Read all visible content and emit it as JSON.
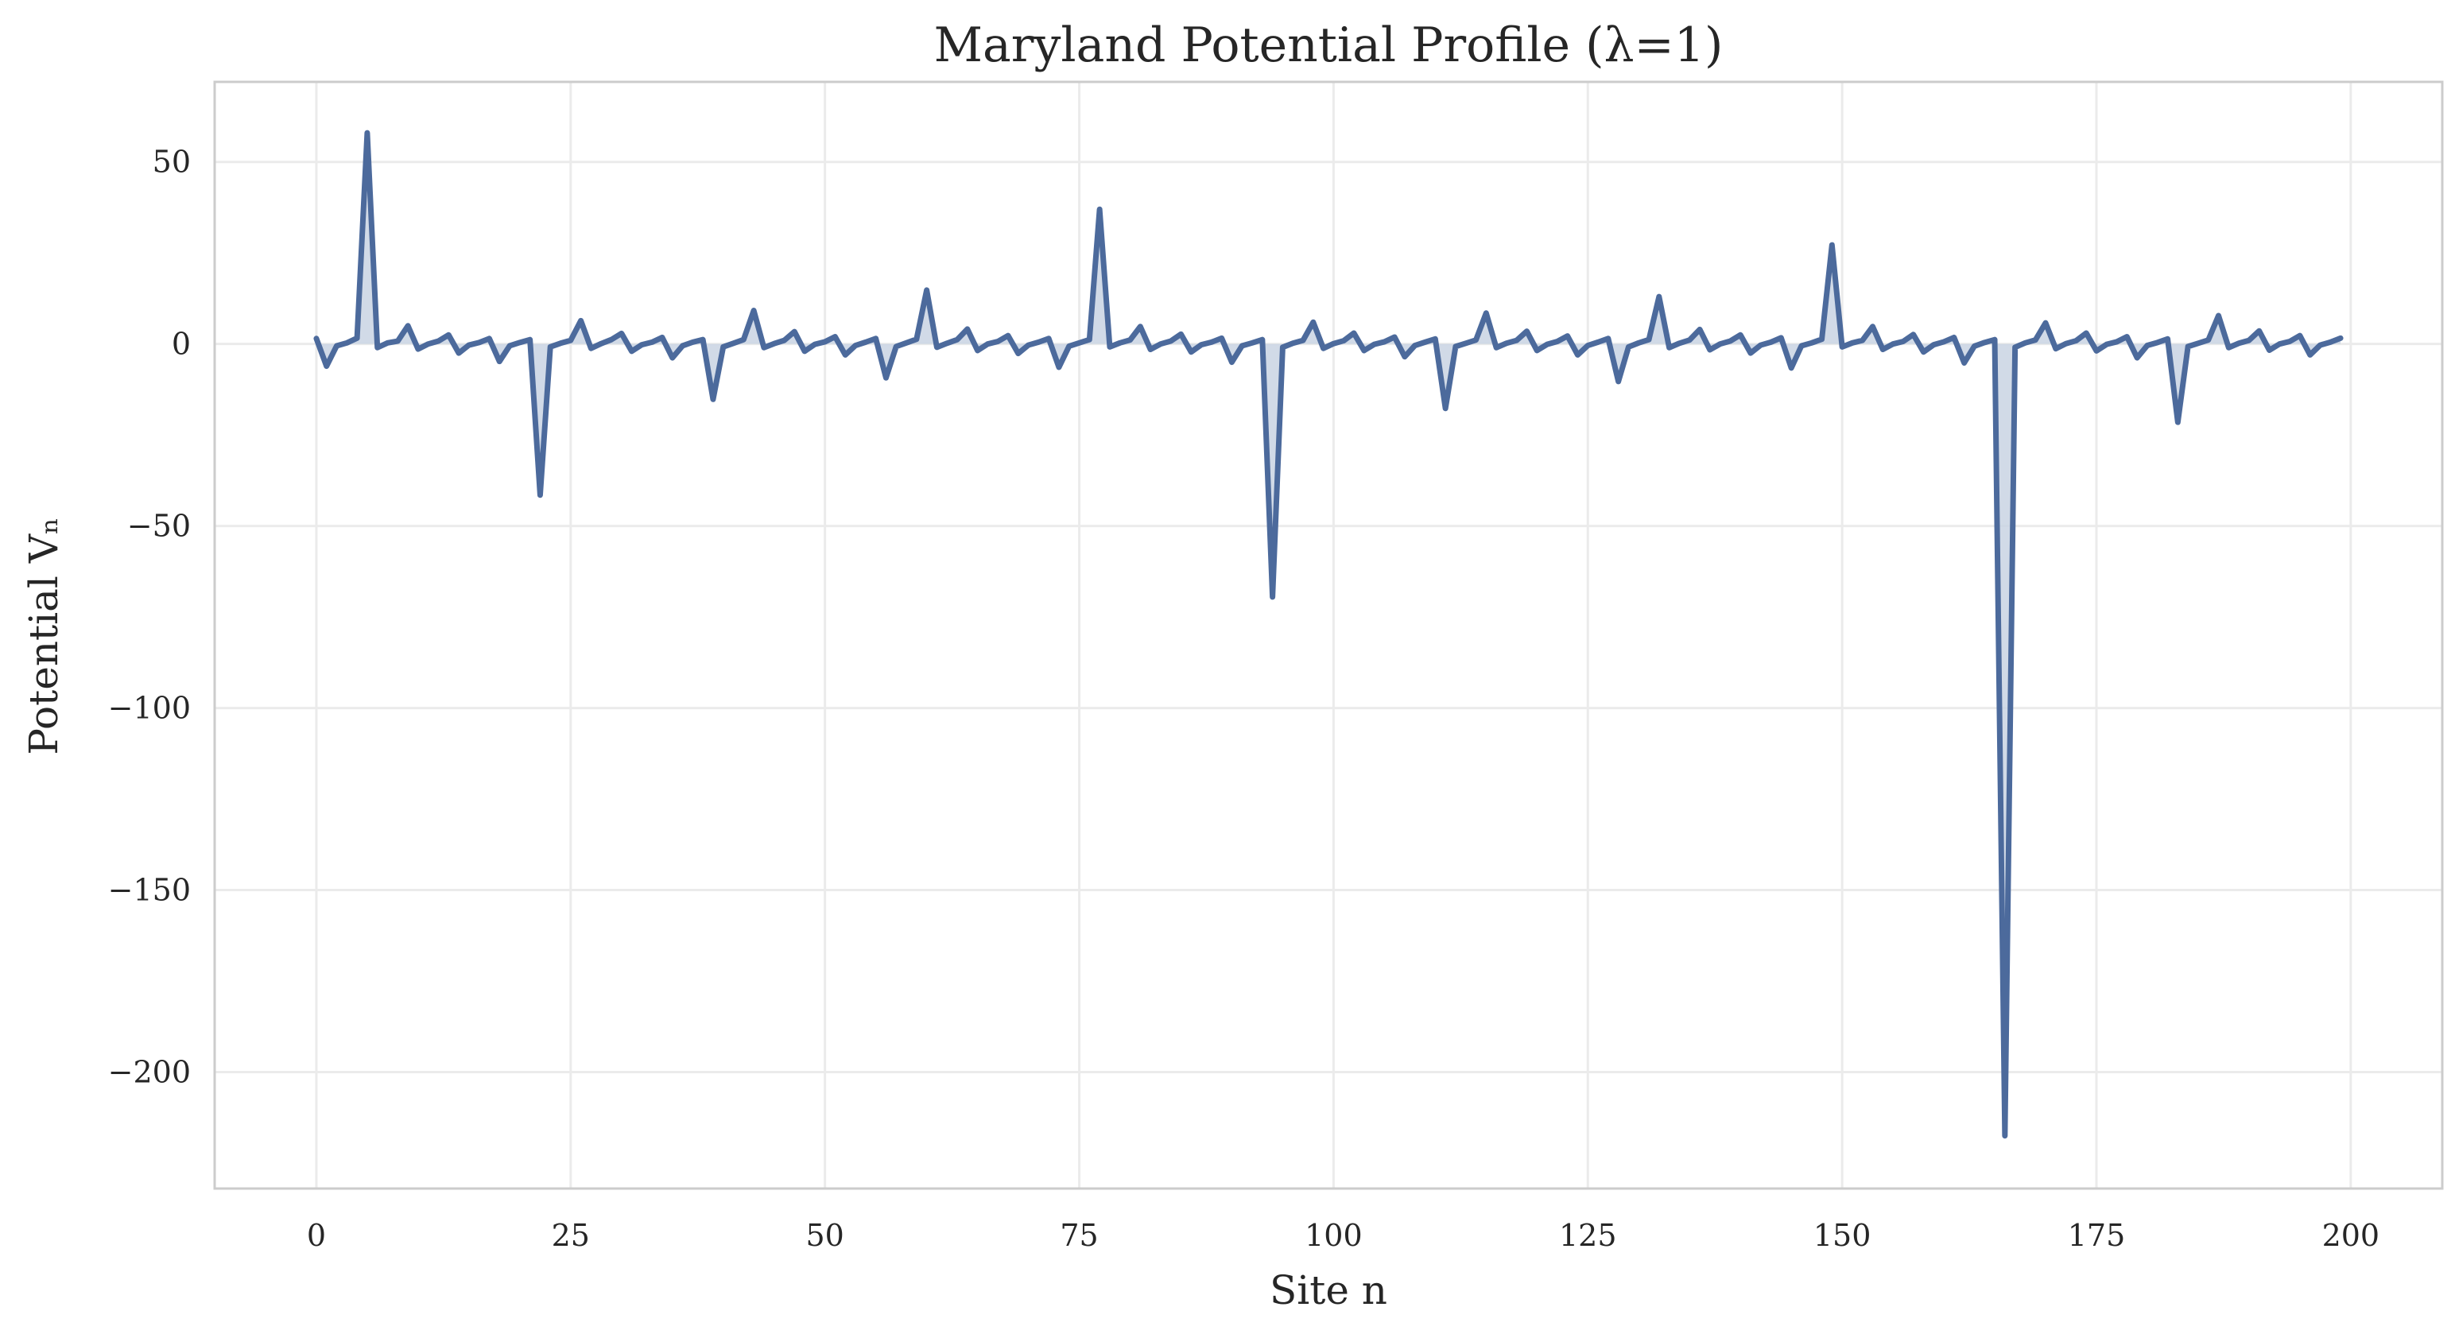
{
  "chart_data": {
    "type": "line",
    "title": "Maryland Potential Profile (λ=1)",
    "xlabel": "Site n",
    "ylabel": "Potential Vₙ",
    "xlim": [
      -10,
      209
    ],
    "ylim": [
      -232,
      72
    ],
    "x_ticks": [
      0,
      25,
      50,
      75,
      100,
      125,
      150,
      175,
      200
    ],
    "x_tick_labels": [
      "0",
      "25",
      "50",
      "75",
      "100",
      "125",
      "150",
      "175",
      "200"
    ],
    "y_ticks": [
      50,
      0,
      -50,
      -100,
      -150,
      -200
    ],
    "y_tick_labels": [
      "50",
      "0",
      "−50",
      "−100",
      "−150",
      "−200"
    ],
    "grid": true,
    "fill_to_zero": true,
    "line_color": "#4c6a9c",
    "fill_color": "#c9d3e3",
    "series": [
      {
        "name": "",
        "x_start": 0,
        "x_step": 1,
        "values": [
          1.5,
          -6.1,
          -0.5,
          0.3,
          1.6,
          58,
          -1.0,
          0.3,
          0.8,
          5.0,
          -1.4,
          0.0,
          0.8,
          2.5,
          -2.5,
          -0.3,
          0.4,
          1.5,
          -4.8,
          -0.5,
          0.4,
          1.2,
          -41.5,
          -0.8,
          0.2,
          1.0,
          6.4,
          -1.2,
          0.1,
          1.2,
          2.9,
          -2.0,
          -0.2,
          0.5,
          1.8,
          -3.8,
          -0.5,
          0.5,
          1.2,
          -15.2,
          -0.8,
          0.2,
          1.2,
          9.2,
          -1.0,
          0.1,
          1.0,
          3.4,
          -2.0,
          -0.1,
          0.6,
          2.0,
          -3.0,
          -0.4,
          0.5,
          1.5,
          -9.3,
          -0.7,
          0.3,
          1.3,
          14.8,
          -0.9,
          0.2,
          1.2,
          4.1,
          -1.8,
          0.0,
          0.7,
          2.3,
          -2.6,
          -0.3,
          0.5,
          1.5,
          -6.4,
          -0.6,
          0.3,
          1.2,
          37.0,
          -0.8,
          0.3,
          1.1,
          4.8,
          -1.5,
          0.0,
          0.8,
          2.7,
          -2.2,
          -0.2,
          0.5,
          1.6,
          -5.0,
          -0.5,
          0.3,
          1.2,
          -69.5,
          -0.9,
          0.2,
          1.0,
          6.0,
          -1.2,
          0.1,
          0.9,
          3.0,
          -1.8,
          -0.1,
          0.6,
          1.9,
          -3.5,
          -0.4,
          0.5,
          1.4,
          -17.7,
          -0.7,
          0.2,
          1.1,
          8.5,
          -1.0,
          0.2,
          1.0,
          3.5,
          -1.8,
          -0.1,
          0.7,
          2.2,
          -3.0,
          -0.4,
          0.5,
          1.5,
          -10.3,
          -0.8,
          0.3,
          1.2,
          13.0,
          -1.0,
          0.2,
          1.1,
          4.0,
          -1.6,
          0.0,
          0.8,
          2.5,
          -2.5,
          -0.3,
          0.5,
          1.7,
          -6.6,
          -0.5,
          0.3,
          1.3,
          27.2,
          -0.8,
          0.3,
          1.0,
          4.8,
          -1.5,
          0.0,
          0.7,
          2.6,
          -2.2,
          -0.2,
          0.6,
          1.8,
          -5.2,
          -0.6,
          0.4,
          1.2,
          -217.5,
          -0.9,
          0.3,
          1.1,
          5.8,
          -1.3,
          0.1,
          0.9,
          3.0,
          -1.9,
          -0.1,
          0.6,
          2.0,
          -3.8,
          -0.4,
          0.4,
          1.4,
          -21.5,
          -0.7,
          0.2,
          1.1,
          7.8,
          -1.0,
          0.2,
          1.0,
          3.6,
          -1.7,
          0.0,
          0.7,
          2.3,
          -3.0,
          -0.3,
          0.5,
          1.6
        ]
      }
    ]
  }
}
